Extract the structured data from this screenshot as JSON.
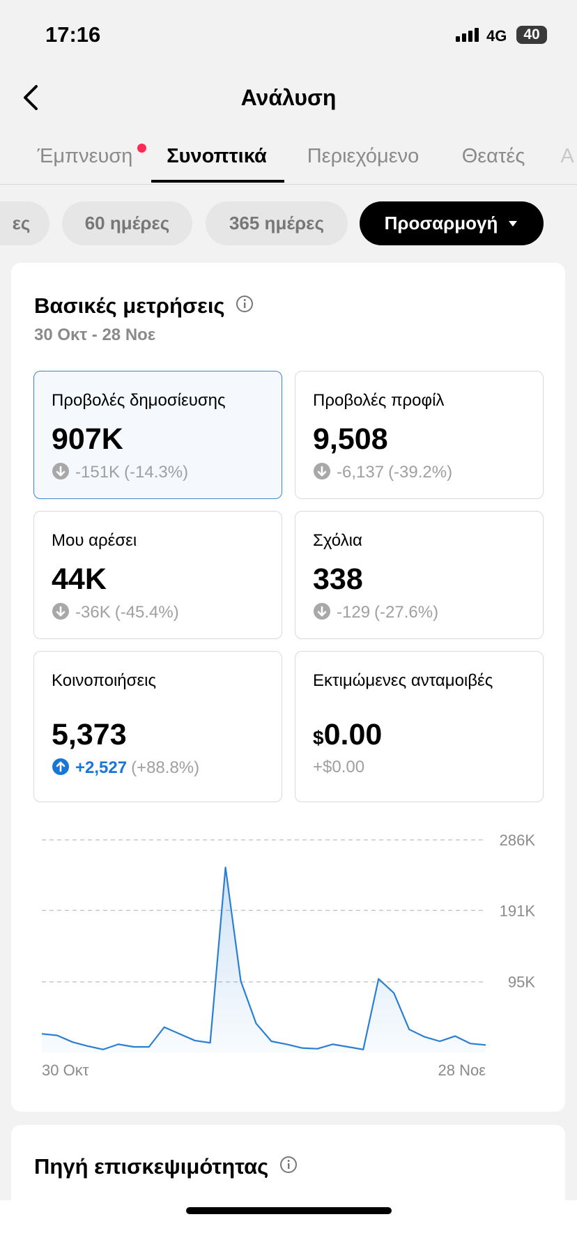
{
  "status": {
    "time": "17:16",
    "network": "4G",
    "battery": "40"
  },
  "header": {
    "title": "Ανάλυση"
  },
  "tabs": [
    "Έμπνευση",
    "Συνοπτικά",
    "Περιεχόμενο",
    "Θεατές",
    "Α"
  ],
  "chips": [
    "ες",
    "60 ημέρες",
    "365 ημέρες",
    "Προσαρμογή"
  ],
  "metrics": {
    "title": "Βασικές μετρήσεις",
    "date_range": "30 Οκτ - 28 Νοε",
    "cards": [
      {
        "label": "Προβολές δημοσίευσης",
        "value": "907K",
        "change": "-151K",
        "change_pct": "(-14.3%)",
        "trend": "down",
        "selected": true
      },
      {
        "label": "Προβολές προφίλ",
        "value": "9,508",
        "change": "-6,137",
        "change_pct": "(-39.2%)",
        "trend": "down",
        "selected": false
      },
      {
        "label": "Μου αρέσει",
        "value": "44K",
        "change": "-36K",
        "change_pct": "(-45.4%)",
        "trend": "down",
        "selected": false
      },
      {
        "label": "Σχόλια",
        "value": "338",
        "change": "-129",
        "change_pct": "(-27.6%)",
        "trend": "down",
        "selected": false
      },
      {
        "label": "Κοινοποιήσεις",
        "value": "5,373",
        "change": "+2,527",
        "change_pct": "(+88.8%)",
        "trend": "up",
        "selected": false
      },
      {
        "label": "Εκτιμώμενες ανταμοιβές",
        "currency": "$",
        "value": "0.00",
        "change": "+$0.00",
        "selected": false
      }
    ]
  },
  "chart_data": {
    "type": "area",
    "grid": true,
    "x": [
      "30 Οκτ",
      null,
      null,
      null,
      null,
      null,
      null,
      null,
      null,
      null,
      null,
      null,
      null,
      null,
      null,
      null,
      null,
      null,
      null,
      null,
      null,
      null,
      null,
      null,
      null,
      null,
      null,
      null,
      null,
      "28 Νοε"
    ],
    "series": [
      {
        "name": "Προβολές δημοσίευσης",
        "color": "#2a7fd4",
        "values": [
          25000,
          23000,
          14000,
          8500,
          4000,
          11000,
          7500,
          7500,
          34000,
          25000,
          16000,
          13000,
          249000,
          96000,
          39000,
          15000,
          11000,
          6000,
          5000,
          11000,
          7500,
          4000,
          99000,
          80000,
          31000,
          21000,
          15000,
          22000,
          12000,
          10000
        ]
      }
    ],
    "ylim": [
      0,
      286000
    ],
    "yticks": [
      {
        "value": 95000,
        "label": "95K"
      },
      {
        "value": 191000,
        "label": "191K"
      },
      {
        "value": 286000,
        "label": "286K"
      }
    ]
  },
  "traffic_source": {
    "title": "Πηγή επισκεψιμότητας"
  }
}
